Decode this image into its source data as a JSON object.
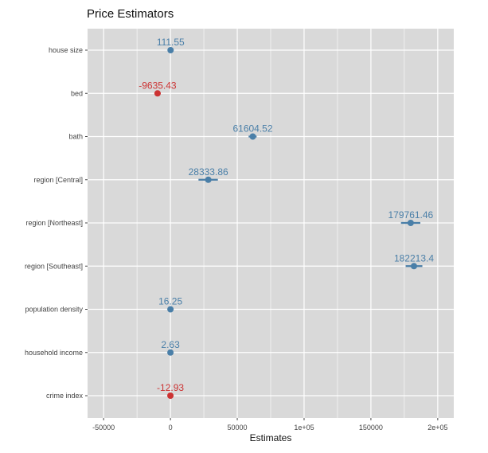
{
  "chart_data": {
    "type": "scatter",
    "title": "Price Estimators",
    "xlabel": "Estimates",
    "ylabel": "",
    "xlim": [
      -62000,
      212000
    ],
    "x_ticks": [
      -50000,
      0,
      50000,
      100000,
      150000,
      200000
    ],
    "x_tick_labels": [
      "-50000",
      "0",
      "50000",
      "1e+05",
      "150000",
      "2e+05"
    ],
    "grid": true,
    "colors": {
      "positive": "#4a7fa8",
      "negative": "#cc3333",
      "panel": "#d9d9d9",
      "grid": "#ffffff"
    },
    "points": [
      {
        "label": "house size",
        "value": 111.55,
        "value_label": "111.55",
        "ci": [
          0,
          0
        ]
      },
      {
        "label": "bed",
        "value": -9635.43,
        "value_label": "-9635.43",
        "ci": [
          -12000,
          -7300
        ]
      },
      {
        "label": "bath",
        "value": 61604.52,
        "value_label": "61604.52",
        "ci": [
          58500,
          64500
        ]
      },
      {
        "label": "region [Central]",
        "value": 28333.86,
        "value_label": "28333.86",
        "ci": [
          21000,
          35500
        ]
      },
      {
        "label": "region [Northeast]",
        "value": 179761.46,
        "value_label": "179761.46",
        "ci": [
          172500,
          187000
        ]
      },
      {
        "label": "region [Southeast]",
        "value": 182213.4,
        "value_label": "182213.4",
        "ci": [
          176000,
          188500
        ]
      },
      {
        "label": "population density",
        "value": 16.25,
        "value_label": "16.25",
        "ci": [
          0,
          0
        ]
      },
      {
        "label": "household income",
        "value": 2.63,
        "value_label": "2.63",
        "ci": [
          0,
          0
        ]
      },
      {
        "label": "crime index",
        "value": -12.93,
        "value_label": "-12.93",
        "ci": [
          0,
          0
        ]
      }
    ]
  }
}
